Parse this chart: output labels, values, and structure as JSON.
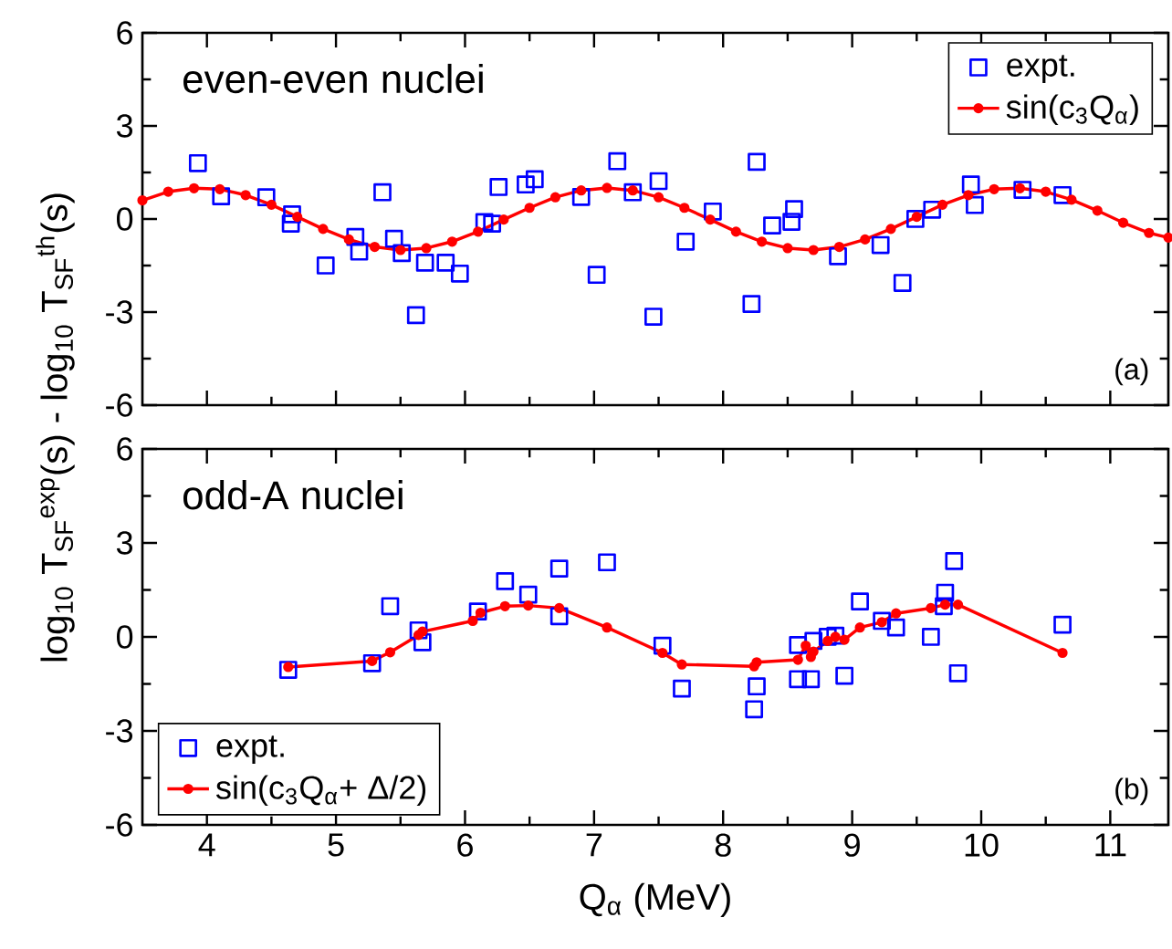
{
  "chart_data": [
    {
      "type": "line",
      "title": "even-even nuclei",
      "ylabel": "log$_{10}$ T$_{SF}$$^{exp}$(s) - log$_{10}$ T$_{SF}$$^{th}$(s)",
      "annotations": [
        "(a)"
      ],
      "xlim": [
        3.5,
        11.45
      ],
      "ylim": [
        -6,
        6
      ],
      "xticks": [
        4,
        5,
        6,
        7,
        8,
        9,
        10,
        11
      ],
      "yticks": [
        -6,
        -3,
        0,
        3,
        6
      ],
      "tick_labels": "y",
      "legend": "top right",
      "series": [
        {
          "name": "expt.",
          "type": "scatter",
          "color": "#0000ff",
          "marker": "square",
          "x": [
            3.93,
            4.11,
            4.46,
            4.66,
            4.65,
            4.92,
            5.15,
            5.18,
            5.36,
            5.45,
            5.51,
            5.62,
            5.69,
            5.85,
            5.96,
            6.15,
            6.21,
            6.26,
            6.47,
            6.54,
            6.9,
            7.02,
            7.18,
            7.3,
            7.46,
            7.5,
            7.71,
            7.92,
            8.22,
            8.26,
            8.38,
            8.53,
            8.55,
            8.89,
            9.22,
            9.39,
            9.49,
            9.62,
            9.92,
            9.95,
            10.32,
            10.63
          ],
          "values": [
            1.8,
            0.73,
            0.7,
            0.15,
            -0.15,
            -1.5,
            -0.58,
            -1.05,
            0.86,
            -0.64,
            -1.1,
            -3.1,
            -1.41,
            -1.41,
            -1.76,
            -0.1,
            -0.15,
            1.03,
            1.11,
            1.28,
            0.71,
            -1.8,
            1.86,
            0.86,
            -3.15,
            1.22,
            -0.73,
            0.24,
            -2.74,
            1.84,
            -0.21,
            -0.09,
            0.32,
            -1.2,
            -0.84,
            -2.06,
            0.0,
            0.3,
            1.11,
            0.45,
            0.94,
            0.77
          ]
        },
        {
          "name": "sin(c$_{3}$Q$_{α}$)",
          "color": "#ff0000",
          "marker": "circle",
          "x": [
            3.5,
            3.7,
            3.9,
            4.1,
            4.3,
            4.5,
            4.7,
            4.9,
            5.1,
            5.3,
            5.5,
            5.7,
            5.9,
            6.1,
            6.3,
            6.5,
            6.7,
            6.9,
            7.1,
            7.3,
            7.5,
            7.7,
            7.9,
            8.1,
            8.3,
            8.5,
            8.7,
            8.9,
            9.1,
            9.3,
            9.5,
            9.7,
            9.9,
            10.1,
            10.3,
            10.5,
            10.7,
            10.9,
            11.1,
            11.3,
            11.45
          ],
          "values": [
            0.6,
            0.88,
            0.99,
            0.96,
            0.77,
            0.46,
            0.07,
            -0.32,
            -0.66,
            -0.9,
            -1.0,
            -0.94,
            -0.73,
            -0.41,
            -0.02,
            0.36,
            0.7,
            0.92,
            1.0,
            0.92,
            0.7,
            0.36,
            -0.02,
            -0.41,
            -0.73,
            -0.94,
            -1.0,
            -0.9,
            -0.66,
            -0.32,
            0.07,
            0.46,
            0.77,
            0.96,
            0.99,
            0.88,
            0.62,
            0.27,
            -0.12,
            -0.45,
            -0.6
          ]
        }
      ]
    },
    {
      "type": "line",
      "title": "odd-A nuclei",
      "xlabel": "Q$_{α}$ (MeV)",
      "annotations": [
        "(b)"
      ],
      "xlim": [
        3.5,
        11.45
      ],
      "ylim": [
        -6,
        6
      ],
      "xticks": [
        4,
        5,
        6,
        7,
        8,
        9,
        10,
        11
      ],
      "yticks": [
        -6,
        -3,
        0,
        3,
        6
      ],
      "legend": "bottom left",
      "series": [
        {
          "name": "expt.",
          "type": "scatter",
          "color": "#0000ff",
          "marker": "square",
          "x": [
            4.63,
            5.28,
            5.42,
            5.64,
            5.67,
            6.1,
            6.31,
            6.49,
            6.73,
            6.73,
            7.1,
            7.53,
            7.68,
            8.24,
            8.26,
            8.58,
            8.58,
            8.68,
            8.7,
            8.81,
            8.87,
            8.94,
            9.06,
            9.23,
            9.34,
            9.61,
            9.72,
            9.71,
            9.79,
            9.82,
            10.63
          ],
          "values": [
            -1.05,
            -0.84,
            0.98,
            0.21,
            -0.17,
            0.81,
            1.78,
            1.35,
            2.18,
            0.66,
            2.38,
            -0.28,
            -1.65,
            -2.31,
            -1.58,
            -0.26,
            -1.35,
            -1.35,
            -0.13,
            0.0,
            0.04,
            -1.24,
            1.13,
            0.51,
            0.3,
            0.0,
            1.41,
            0.98,
            2.42,
            -1.16,
            0.39
          ]
        },
        {
          "name": "sin(c$_{3}$Q$_{α}$+ Δ/2)",
          "color": "#ff0000",
          "marker": "circle",
          "x": [
            4.63,
            5.28,
            5.42,
            5.64,
            5.67,
            6.06,
            6.12,
            6.31,
            6.49,
            6.73,
            7.1,
            7.53,
            7.68,
            8.24,
            8.26,
            8.58,
            8.64,
            8.68,
            8.7,
            8.81,
            8.87,
            8.94,
            9.06,
            9.23,
            9.34,
            9.61,
            9.72,
            9.82,
            10.63
          ],
          "values": [
            -0.96,
            -0.77,
            -0.49,
            0.06,
            0.17,
            0.51,
            0.77,
            0.98,
            1.0,
            0.92,
            0.3,
            -0.51,
            -0.88,
            -0.94,
            -0.81,
            -0.73,
            -0.28,
            -0.64,
            -0.47,
            -0.13,
            0.0,
            -0.09,
            0.3,
            0.47,
            0.75,
            0.92,
            1.03,
            1.03,
            -0.51
          ]
        }
      ]
    }
  ]
}
